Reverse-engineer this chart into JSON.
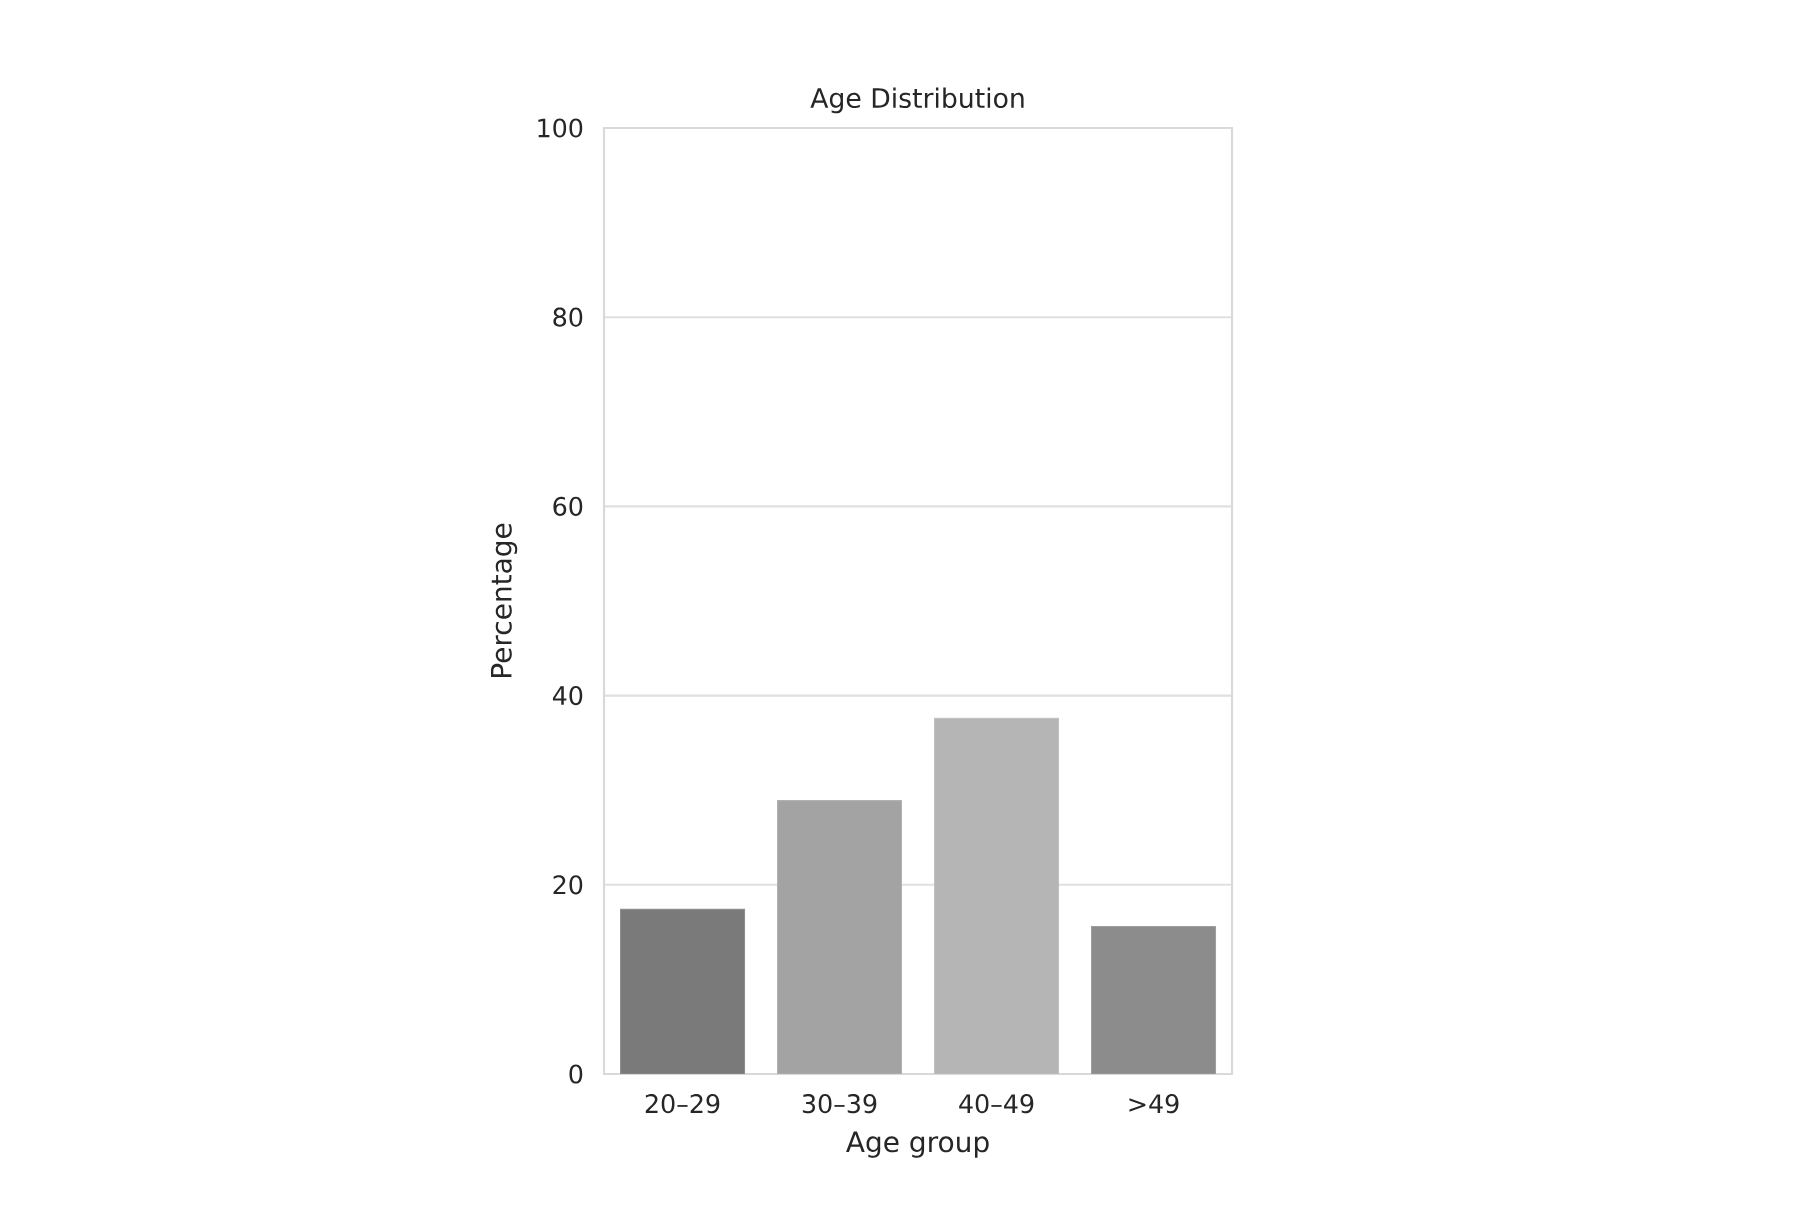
{
  "chart_data": {
    "type": "bar",
    "title": "Age Distribution",
    "xlabel": "Age group",
    "ylabel": "Percentage",
    "categories": [
      "20–29",
      "30–39",
      "40–49",
      ">49"
    ],
    "values": [
      17.4,
      28.9,
      37.6,
      15.6
    ],
    "colors": [
      "#7a7a7a",
      "#a3a3a3",
      "#b5b5b5",
      "#8c8c8c"
    ],
    "ylim": [
      0,
      100
    ],
    "yticks": [
      0,
      20,
      40,
      60,
      80,
      100
    ],
    "grid": "y"
  }
}
